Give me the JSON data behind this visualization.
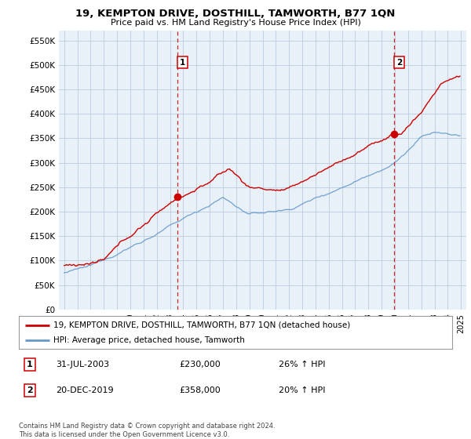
{
  "title": "19, KEMPTON DRIVE, DOSTHILL, TAMWORTH, B77 1QN",
  "subtitle": "Price paid vs. HM Land Registry's House Price Index (HPI)",
  "ylabel_ticks": [
    "£0",
    "£50K",
    "£100K",
    "£150K",
    "£200K",
    "£250K",
    "£300K",
    "£350K",
    "£400K",
    "£450K",
    "£500K",
    "£550K"
  ],
  "ytick_values": [
    0,
    50000,
    100000,
    150000,
    200000,
    250000,
    300000,
    350000,
    400000,
    450000,
    500000,
    550000
  ],
  "ylim": [
    0,
    570000
  ],
  "marker1_year": 2003.58,
  "marker1_value": 230000,
  "marker2_year": 2019.95,
  "marker2_value": 358000,
  "vline1_year": 2003.58,
  "vline2_year": 2019.95,
  "legend_line1": "19, KEMPTON DRIVE, DOSTHILL, TAMWORTH, B77 1QN (detached house)",
  "legend_line2": "HPI: Average price, detached house, Tamworth",
  "annot1_date": "31-JUL-2003",
  "annot1_price": "£230,000",
  "annot1_hpi": "26% ↑ HPI",
  "annot2_date": "20-DEC-2019",
  "annot2_price": "£358,000",
  "annot2_hpi": "20% ↑ HPI",
  "footer": "Contains HM Land Registry data © Crown copyright and database right 2024.\nThis data is licensed under the Open Government Licence v3.0.",
  "line_color_red": "#cc0000",
  "line_color_blue": "#6699cc",
  "vline_color": "#cc0000",
  "bg_color": "#e8f0f8",
  "plot_bg": "#e8f0f8",
  "grid_color": "#bbccdd"
}
